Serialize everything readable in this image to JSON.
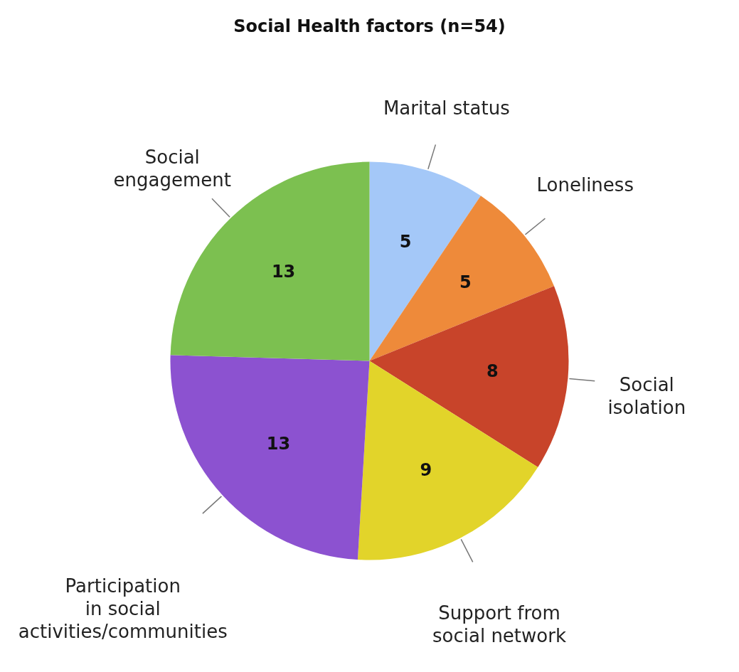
{
  "chart_data": {
    "type": "pie",
    "title": "Social Health factors (n=54)",
    "categories": [
      "Marital status",
      "Loneliness",
      "Social isolation",
      "Support from social network",
      "Participation in social activities/communities",
      "Social engagement"
    ],
    "values": [
      5,
      5,
      8,
      9,
      13,
      13
    ],
    "colors": [
      "#a4c8f8",
      "#ee8a3a",
      "#c8442a",
      "#e2d42a",
      "#8c52d0",
      "#7cc050"
    ],
    "data_labels": true
  }
}
